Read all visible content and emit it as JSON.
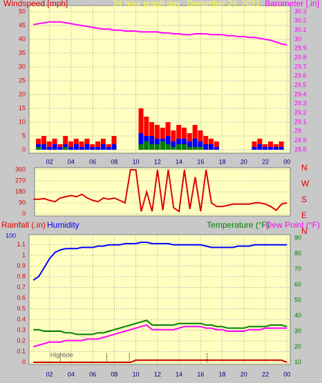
{
  "chart_data": [
    {
      "type": "bar",
      "title": "24 hour graph day   December 24, 2021",
      "ylabel": "Windspeed [mph]",
      "y2label": "Barometer [.in]",
      "x": [
        0.5,
        1,
        1.5,
        2,
        2.5,
        3,
        3.5,
        4,
        4.5,
        5,
        5.5,
        6,
        6.5,
        7,
        7.5,
        8,
        8.5,
        9,
        9.5,
        10,
        10.5,
        11,
        11.5,
        12,
        12.5,
        13,
        13.5,
        14,
        14.5,
        15,
        15.5,
        16,
        16.5,
        17,
        17.5,
        18,
        18.5,
        19,
        19.5,
        20,
        20.5,
        21,
        21.5,
        22,
        22.5,
        23,
        23.5,
        24
      ],
      "xlim": [
        0.1,
        24.3
      ],
      "xticks": [
        {
          "value": 2,
          "label": "02"
        },
        {
          "value": 4,
          "label": "04"
        },
        {
          "value": 6,
          "label": "06"
        },
        {
          "value": 8,
          "label": "08"
        },
        10,
        12,
        14,
        16,
        18,
        20,
        22,
        {
          "value": 24,
          "label": "00"
        }
      ],
      "ylim": [
        0,
        50
      ],
      "yticks": [
        0,
        5,
        10,
        15,
        20,
        25,
        30,
        35,
        40,
        45,
        50
      ],
      "ycolor": "#e00000",
      "y2lim": [
        28.8,
        30.3
      ],
      "y2ticks": [
        28.8,
        28.9,
        29,
        29.1,
        29.2,
        29.3,
        29.4,
        29.5,
        29.6,
        29.7,
        29.8,
        29.9,
        30,
        30.1,
        30.2,
        30.3
      ],
      "y2color": "#ff00ff",
      "grid": true,
      "series": [
        {
          "color": "#ff0000",
          "values": [
            0,
            4,
            5,
            3,
            4,
            2,
            5,
            3,
            4,
            3,
            4,
            2,
            3,
            4,
            2,
            5,
            0,
            0,
            0,
            0,
            15,
            12,
            10,
            9,
            8,
            10,
            7,
            9,
            8,
            6,
            9,
            7,
            5,
            4,
            3,
            0,
            0,
            0,
            0,
            0,
            0,
            3,
            4,
            2,
            3,
            2,
            3,
            0
          ]
        },
        {
          "color": "#0000ff",
          "values": [
            0,
            2,
            2,
            1,
            2,
            1,
            2,
            1,
            2,
            1,
            2,
            1,
            1,
            2,
            1,
            2,
            0,
            0,
            0,
            0,
            6,
            5,
            5,
            4,
            4,
            5,
            3,
            4,
            4,
            3,
            4,
            3,
            2,
            2,
            1,
            0,
            0,
            0,
            0,
            0,
            0,
            1,
            2,
            1,
            1,
            1,
            1,
            0
          ]
        },
        {
          "color": "#008000",
          "values": [
            0,
            1,
            0,
            0,
            0,
            0,
            1,
            0,
            0,
            0,
            0,
            0,
            0,
            0,
            0,
            0,
            0,
            0,
            0,
            0,
            2,
            3,
            2,
            2,
            3,
            2,
            1,
            2,
            2,
            1,
            1,
            1,
            0,
            0,
            0,
            0,
            0,
            0,
            0,
            0,
            0,
            0,
            0,
            0,
            0,
            0,
            0,
            0
          ]
        },
        {
          "type": "line",
          "axis": "y2",
          "color": "#ff00ff",
          "values": [
            30.16,
            30.17,
            30.18,
            30.19,
            30.19,
            30.19,
            30.18,
            30.17,
            30.16,
            30.15,
            30.14,
            30.13,
            30.12,
            30.11,
            30.11,
            30.1,
            30.1,
            30.09,
            30.09,
            30.09,
            30.08,
            30.08,
            30.08,
            30.08,
            30.07,
            30.07,
            30.06,
            30.06,
            30.05,
            30.05,
            30.06,
            30.06,
            30.06,
            30.05,
            30.05,
            30.05,
            30.04,
            30.04,
            30.03,
            30.03,
            30.02,
            30.02,
            30.01,
            30,
            29.99,
            29.97,
            29.95,
            29.94
          ]
        }
      ]
    },
    {
      "type": "line",
      "compass": [
        "N",
        "W",
        "S",
        "E",
        "N"
      ],
      "x": [
        0.5,
        1,
        1.5,
        2,
        2.5,
        3,
        3.5,
        4,
        4.5,
        5,
        5.5,
        6,
        6.5,
        7,
        7.5,
        8,
        8.5,
        9,
        9.5,
        10,
        10.5,
        11,
        11.5,
        12,
        12.5,
        13,
        13.5,
        14,
        14.5,
        15,
        15.5,
        16,
        16.5,
        17,
        17.5,
        18,
        18.5,
        19,
        19.5,
        20,
        20.5,
        21,
        21.5,
        22,
        22.5,
        23,
        23.5,
        24
      ],
      "xlim": [
        0.1,
        24.3
      ],
      "ylim": [
        0,
        360
      ],
      "yticks": [
        0,
        90,
        180,
        270,
        360
      ],
      "ycolor": "#e00000",
      "grid": true,
      "series": [
        {
          "color": "#e00000",
          "values": [
            120,
            120,
            125,
            110,
            100,
            130,
            140,
            150,
            140,
            160,
            130,
            110,
            100,
            130,
            120,
            130,
            110,
            90,
            360,
            360,
            20,
            180,
            20,
            360,
            30,
            360,
            50,
            20,
            360,
            40,
            300,
            20,
            360,
            90,
            60,
            60,
            70,
            80,
            80,
            80,
            80,
            90,
            90,
            80,
            60,
            30,
            80,
            90
          ]
        }
      ]
    },
    {
      "type": "line",
      "ylabel": "Rainfall (.in)",
      "y3label": "Humidity",
      "y2label": "Temperature (°F)",
      "y4label": "Dew Point (°F)",
      "x": [
        0.5,
        1,
        1.5,
        2,
        2.5,
        3,
        3.5,
        4,
        4.5,
        5,
        5.5,
        6,
        6.5,
        7,
        7.5,
        8,
        8.5,
        9,
        9.5,
        10,
        10.5,
        11,
        11.5,
        12,
        12.5,
        13,
        13.5,
        14,
        14.5,
        15,
        15.5,
        16,
        16.5,
        17,
        17.5,
        18,
        18.5,
        19,
        19.5,
        20,
        20.5,
        21,
        21.5,
        22,
        22.5,
        23,
        23.5,
        24
      ],
      "xlim": [
        0.1,
        24.3
      ],
      "xticks": [
        {
          "value": 2,
          "label": "02"
        },
        {
          "value": 4,
          "label": "04"
        },
        {
          "value": 6,
          "label": "06"
        },
        {
          "value": 8,
          "label": "08"
        },
        10,
        12,
        14,
        16,
        18,
        20,
        22,
        {
          "value": 24,
          "label": "00"
        }
      ],
      "ylim": [
        0,
        1.18
      ],
      "yticks": [
        0,
        0.1,
        0.2,
        0.3,
        0.4,
        0.5,
        0.6,
        0.7,
        0.8,
        0.9,
        1,
        1.1
      ],
      "ycolor": "#e00000",
      "y2lim": [
        10,
        91.3
      ],
      "y2ticks": [
        10,
        20,
        30,
        40,
        50,
        60,
        70,
        80,
        90
      ],
      "y2color": "#008000",
      "y3lim": [
        0,
        100
      ],
      "y3ticks": [
        100
      ],
      "y3color": "#0000ff",
      "grid": true,
      "tide_label": "Hightide",
      "tide_x": [
        3,
        7.3,
        9.4,
        16.6
      ],
      "series": [
        {
          "axis": "y3",
          "color": "#0000ff",
          "values": [
            65,
            68,
            75,
            82,
            87,
            89,
            90,
            90,
            90,
            91,
            91,
            91,
            92,
            92,
            93,
            93,
            93,
            94,
            94,
            94,
            95,
            95,
            94,
            94,
            94,
            94,
            93,
            93,
            93,
            93,
            93,
            93,
            92,
            91,
            91,
            91,
            91,
            91,
            92,
            92,
            92,
            93,
            93,
            93,
            93,
            93,
            93,
            93
          ]
        },
        {
          "axis": "y2",
          "color": "#008000",
          "values": [
            31,
            31,
            30,
            30,
            30,
            30,
            29,
            29,
            28,
            28,
            28,
            28,
            29,
            29,
            30,
            31,
            32,
            33,
            34,
            35,
            36,
            37,
            34,
            34,
            34,
            34,
            34,
            35,
            35,
            35,
            35,
            35,
            34,
            34,
            33,
            33,
            32,
            32,
            32,
            32,
            33,
            33,
            33,
            33,
            34,
            34,
            34,
            33
          ]
        },
        {
          "axis": "y2",
          "color": "#ff00ff",
          "values": [
            20,
            21,
            22,
            23,
            23,
            23,
            24,
            24,
            24,
            24,
            25,
            25,
            25,
            26,
            27,
            28,
            29,
            30,
            31,
            32,
            33,
            34,
            31,
            31,
            31,
            31,
            31,
            32,
            33,
            33,
            33,
            33,
            32,
            32,
            31,
            31,
            30,
            30,
            30,
            30,
            31,
            31,
            31,
            32,
            32,
            32,
            32,
            32
          ]
        },
        {
          "color": "#cc0000",
          "values": [
            0,
            0,
            0,
            0,
            0,
            0,
            0,
            0,
            0,
            0,
            0,
            0,
            0,
            0,
            0,
            0,
            0,
            0,
            0,
            0.02,
            0.02,
            0.02,
            0.02,
            0.02,
            0.02,
            0.02,
            0.02,
            0.02,
            0.02,
            0.02,
            0.02,
            0.02,
            0.02,
            0.02,
            0.02,
            0.02,
            0.02,
            0.02,
            0.02,
            0.02,
            0.02,
            0.02,
            0.02,
            0.02,
            0.02,
            0.02,
            0.02,
            0
          ]
        }
      ]
    }
  ]
}
